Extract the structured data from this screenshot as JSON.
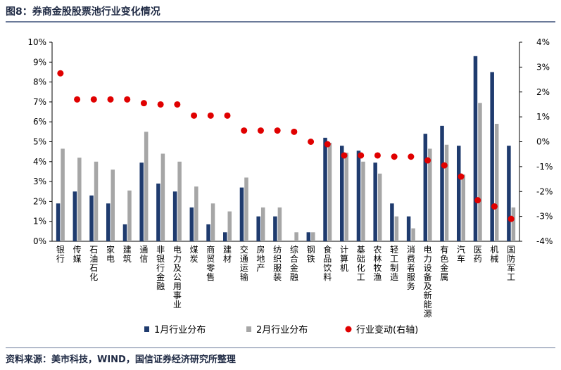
{
  "figure": {
    "title": "图8：券商金股股票池行业变化情况",
    "source": "资料来源：美市科技，WIND，国信证券经济研究所整理"
  },
  "colors": {
    "jan": "#1f3b6e",
    "feb": "#a6a6a6",
    "change": "#e00000",
    "title_text": "#1f2a44",
    "rule": "#6b7a99"
  },
  "chart_data": {
    "type": "bar",
    "categories": [
      "银行",
      "传媒",
      "石油石化",
      "家电",
      "建筑",
      "通信",
      "非银行金融",
      "电力及公用事业",
      "煤炭",
      "商贸零售",
      "建材",
      "交通运输",
      "房地产",
      "纺织服装",
      "综合金融",
      "钢铁",
      "食品饮料",
      "计算机",
      "基础化工",
      "农林牧渔",
      "轻工制造",
      "消费者服务",
      "电力设备及新能源",
      "有色金属",
      "汽车",
      "医药",
      "机械",
      "国防军工"
    ],
    "series": [
      {
        "name": "1月行业分布",
        "axis": "left",
        "type": "bar",
        "values": [
          1.9,
          2.5,
          2.3,
          1.9,
          0.85,
          3.95,
          2.9,
          2.5,
          1.7,
          0.85,
          0.45,
          2.7,
          1.25,
          1.25,
          0.0,
          0.45,
          5.2,
          4.8,
          4.55,
          3.95,
          1.9,
          1.25,
          5.4,
          5.8,
          4.8,
          9.3,
          8.5,
          4.8
        ]
      },
      {
        "name": "2月行业分布",
        "axis": "left",
        "type": "bar",
        "values": [
          4.65,
          4.2,
          4.0,
          3.6,
          2.55,
          5.5,
          4.4,
          4.0,
          2.75,
          1.9,
          1.5,
          3.2,
          1.7,
          1.7,
          0.45,
          0.45,
          4.95,
          4.45,
          4.0,
          3.4,
          1.25,
          0.65,
          4.65,
          4.85,
          3.35,
          6.95,
          5.9,
          1.7
        ]
      },
      {
        "name": "行业变动(右轴)",
        "axis": "right",
        "type": "scatter",
        "values": [
          2.75,
          1.7,
          1.7,
          1.7,
          1.7,
          1.55,
          1.5,
          1.5,
          1.05,
          1.05,
          1.05,
          0.45,
          0.45,
          0.45,
          0.4,
          0.0,
          -0.1,
          -0.55,
          -0.55,
          -0.55,
          -0.6,
          -0.6,
          -0.75,
          -0.95,
          -1.4,
          -2.35,
          -2.6,
          -3.1
        ]
      }
    ],
    "y_left": {
      "ylim": [
        0,
        10
      ],
      "ticks": [
        "0%",
        "1%",
        "2%",
        "3%",
        "4%",
        "5%",
        "6%",
        "7%",
        "8%",
        "9%",
        "10%"
      ]
    },
    "y_right": {
      "ylim": [
        -4,
        4
      ],
      "ticks": [
        "-4%",
        "-3%",
        "-2%",
        "-1%",
        "0%",
        "1%",
        "2%",
        "3%",
        "4%"
      ]
    },
    "legend": [
      "1月行业分布",
      "2月行业分布",
      "行业变动(右轴)"
    ],
    "legend_position": "bottom",
    "grid": false
  }
}
